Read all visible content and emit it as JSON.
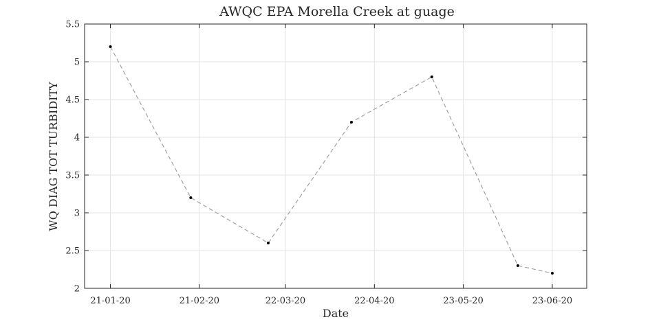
{
  "chart_data": {
    "type": "line",
    "title": "AWQC EPA Morella Creek at guage",
    "xlabel": "Date",
    "ylabel": "WQ DIAG TOT TURBIDITY",
    "x_ticks": [
      "21-01-20",
      "21-02-20",
      "22-03-20",
      "22-04-20",
      "23-05-20",
      "23-06-20"
    ],
    "x_tick_dates": [
      "2020-01-21",
      "2020-02-21",
      "2020-03-22",
      "2020-04-22",
      "2020-05-23",
      "2020-06-23"
    ],
    "xlim": [
      "2020-01-12",
      "2020-07-05"
    ],
    "ylim": [
      2,
      5.5
    ],
    "y_ticks": [
      2,
      2.5,
      3,
      3.5,
      4,
      4.5,
      5,
      5.5
    ],
    "y_tick_labels": [
      "2",
      "2.5",
      "3",
      "3.5",
      "4",
      "4.5",
      "5",
      "5.5"
    ],
    "grid": true,
    "series": [
      {
        "x": [
          "2020-01-21",
          "2020-02-18",
          "2020-03-16",
          "2020-04-14",
          "2020-05-12",
          "2020-06-11",
          "2020-06-23"
        ],
        "y": [
          5.2,
          3.2,
          2.6,
          4.2,
          4.8,
          2.3,
          2.2
        ],
        "line_color": "#9a9a9a",
        "line_style": "dashed",
        "marker_color": "#000000"
      }
    ]
  }
}
